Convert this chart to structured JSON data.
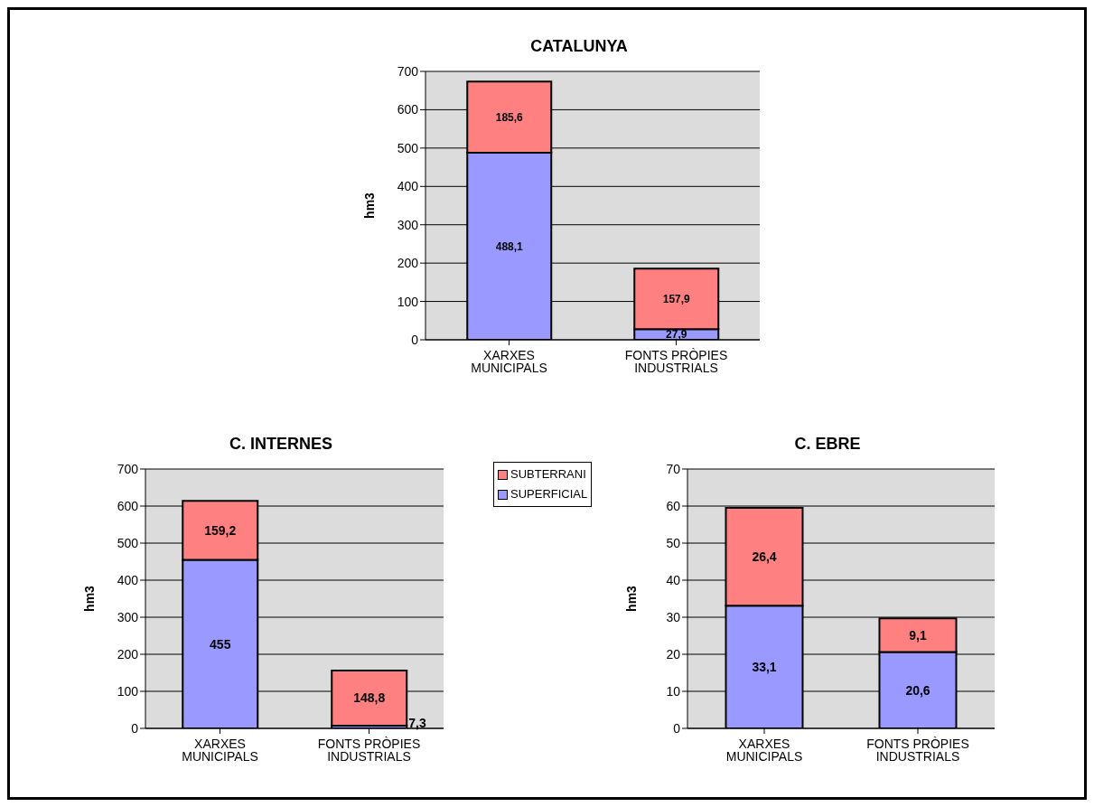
{
  "chart_data": [
    {
      "type": "bar",
      "title": "CATALUNYA",
      "ylabel": "hm3",
      "categories": [
        "XARXES MUNICIPALS",
        "FONTS PRÒPIES INDUSTRIALS"
      ],
      "stacked": true,
      "ylim": [
        0,
        700
      ],
      "yticks": [
        0,
        100,
        200,
        300,
        400,
        500,
        600,
        700
      ],
      "grid": "y",
      "series": [
        {
          "color": "#9999ff",
          "values": [
            488.1,
            27.9
          ],
          "value_labels": [
            "488,1",
            "27,9"
          ]
        },
        {
          "color": "#ff8080",
          "values": [
            185.6,
            157.9
          ],
          "value_labels": [
            "185,6",
            "157,9"
          ]
        }
      ]
    },
    {
      "type": "bar",
      "title": "C. INTERNES",
      "ylabel": "hm3",
      "categories": [
        "XARXES MUNICIPALS",
        "FONTS PRÒPIES INDUSTRIALS"
      ],
      "stacked": true,
      "ylim": [
        0,
        700
      ],
      "yticks": [
        0,
        100,
        200,
        300,
        400,
        500,
        600,
        700
      ],
      "grid": "y",
      "legend": "right",
      "series": [
        {
          "name": "SUPERFICIAL",
          "color": "#9999ff",
          "values": [
            455,
            7.3
          ],
          "value_labels": [
            "455",
            "7,3"
          ]
        },
        {
          "name": "SUBTERRANI",
          "color": "#ff8080",
          "values": [
            159.2,
            148.8
          ],
          "value_labels": [
            "159,2",
            "148,8"
          ]
        }
      ]
    },
    {
      "type": "bar",
      "title": "C. EBRE",
      "ylabel": "hm3",
      "categories": [
        "XARXES MUNICIPALS",
        "FONTS PRÒPIES INDUSTRIALS"
      ],
      "stacked": true,
      "ylim": [
        0,
        70
      ],
      "yticks": [
        0,
        10,
        20,
        30,
        40,
        50,
        60,
        70
      ],
      "grid": "y",
      "series": [
        {
          "color": "#9999ff",
          "values": [
            33.1,
            20.6
          ],
          "value_labels": [
            "33,1",
            "20,6"
          ]
        },
        {
          "color": "#ff8080",
          "values": [
            26.4,
            9.1
          ],
          "value_labels": [
            "26,4",
            "9,1"
          ]
        }
      ]
    }
  ]
}
